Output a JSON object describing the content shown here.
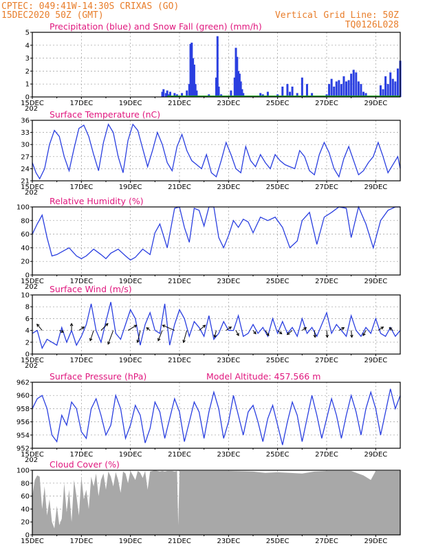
{
  "header": {
    "line1": "CPTEC:   049:41W-14:30S   CRIXAS (GO)",
    "line2": "15DEC2020 50Z (GMT)",
    "grid_note": "Vertical Grid Line: 50Z",
    "run_id": "TQ0126L028"
  },
  "colors": {
    "header": "#e87d2a",
    "title": "#e0177e",
    "series": "#2a3fe0",
    "snow": "#1fa01f",
    "cloud": "#a8a8a8"
  },
  "x_axis": {
    "range_days": [
      15,
      30
    ],
    "labels": [
      {
        "day": 15,
        "label": "15DEC"
      },
      {
        "day": 17,
        "label": "17DEC"
      },
      {
        "day": 19,
        "label": "19DEC"
      },
      {
        "day": 21,
        "label": "21DEC"
      },
      {
        "day": 23,
        "label": "23DEC"
      },
      {
        "day": 25,
        "label": "25DEC"
      },
      {
        "day": 27,
        "label": "27DEC"
      },
      {
        "day": 29,
        "label": "29DEC"
      }
    ],
    "year_fragment": "202"
  },
  "chart_data": [
    {
      "id": "precip",
      "type": "bar",
      "title": "Precipitation (blue) and Snow Fall (green) (mm/h)",
      "ylim": [
        0,
        5
      ],
      "yticks": [
        0,
        1,
        2,
        3,
        4,
        5
      ],
      "grid": true,
      "x_day": [
        15.0,
        15.5,
        16.0,
        16.5,
        17.0,
        17.5,
        18.0,
        18.5,
        19.0,
        19.5,
        20.0,
        20.3,
        20.35,
        20.45,
        20.5,
        20.55,
        20.62,
        20.7,
        20.8,
        20.9,
        21.0,
        21.1,
        21.3,
        21.4,
        21.45,
        21.5,
        21.55,
        21.6,
        21.65,
        21.7,
        21.8,
        22.0,
        22.2,
        22.4,
        22.5,
        22.55,
        22.6,
        22.7,
        22.9,
        23.0,
        23.1,
        23.25,
        23.3,
        23.35,
        23.4,
        23.45,
        23.5,
        23.55,
        23.6,
        23.7,
        23.8,
        24.0,
        24.1,
        24.3,
        24.4,
        24.5,
        24.6,
        24.8,
        25.0,
        25.2,
        25.4,
        25.5,
        25.6,
        25.8,
        26.0,
        26.2,
        26.4,
        26.6,
        26.8,
        27.0,
        27.1,
        27.2,
        27.3,
        27.4,
        27.5,
        27.6,
        27.7,
        27.8,
        27.9,
        28.0,
        28.1,
        28.2,
        28.3,
        28.4,
        28.5,
        28.6,
        28.8,
        29.0,
        29.2,
        29.3,
        29.4,
        29.5,
        29.6,
        29.7,
        29.8,
        29.9,
        30.0
      ],
      "values": [
        0,
        0,
        0,
        0,
        0,
        0,
        0,
        0,
        0,
        0,
        0,
        0.4,
        0.6,
        0.3,
        0.5,
        0.2,
        0.4,
        0.1,
        0.3,
        0.2,
        0.1,
        0.3,
        0.5,
        1.0,
        4.1,
        4.2,
        3.0,
        2.5,
        1.0,
        0.5,
        0.1,
        0.1,
        0.2,
        0.1,
        1.5,
        4.7,
        0.8,
        0.2,
        0,
        0.1,
        0.5,
        1.5,
        3.8,
        3.1,
        2.0,
        1.8,
        1.2,
        0.6,
        0.3,
        0.1,
        0,
        0,
        0.1,
        0.3,
        0.2,
        0.1,
        0.4,
        0.1,
        0.2,
        0.8,
        1.0,
        0.4,
        0.8,
        0.3,
        1.5,
        1.0,
        0.3,
        0.1,
        0.1,
        0.2,
        1.0,
        1.4,
        0.8,
        1.2,
        1.3,
        1.0,
        1.6,
        1.2,
        1.3,
        1.8,
        2.1,
        1.9,
        1.2,
        1.0,
        0.4,
        0.3,
        0.1,
        0.1,
        0.9,
        0.6,
        1.6,
        1.0,
        1.9,
        1.4,
        1.2,
        2.2,
        2.8
      ],
      "snow_values": [
        0
      ]
    },
    {
      "id": "temp",
      "type": "line",
      "title": "Surface Temperature (nC)",
      "ylim": [
        21,
        36
      ],
      "yticks": [
        21,
        24,
        27,
        30,
        33,
        36
      ],
      "grid": true,
      "x_day": [
        15.0,
        15.15,
        15.3,
        15.5,
        15.7,
        15.9,
        16.1,
        16.3,
        16.5,
        16.7,
        16.9,
        17.1,
        17.3,
        17.5,
        17.7,
        17.9,
        18.1,
        18.3,
        18.5,
        18.7,
        18.9,
        19.1,
        19.3,
        19.5,
        19.7,
        19.9,
        20.1,
        20.3,
        20.5,
        20.7,
        20.9,
        21.1,
        21.3,
        21.5,
        21.7,
        21.9,
        22.1,
        22.3,
        22.5,
        22.7,
        22.9,
        23.1,
        23.3,
        23.5,
        23.7,
        23.9,
        24.1,
        24.3,
        24.5,
        24.7,
        24.9,
        25.1,
        25.3,
        25.5,
        25.7,
        25.9,
        26.1,
        26.3,
        26.5,
        26.7,
        26.9,
        27.1,
        27.3,
        27.5,
        27.7,
        27.9,
        28.1,
        28.3,
        28.5,
        28.7,
        28.9,
        29.1,
        29.3,
        29.5,
        29.7,
        29.9,
        30.0
      ],
      "values": [
        25.5,
        23.0,
        21.5,
        24.0,
        30.0,
        33.5,
        32.0,
        27.0,
        23.5,
        29.0,
        34.0,
        34.8,
        32.0,
        27.5,
        23.5,
        30.5,
        35.0,
        33.0,
        27.0,
        23.0,
        31.0,
        35.0,
        33.5,
        29.0,
        24.5,
        28.5,
        33.0,
        30.0,
        25.5,
        23.5,
        29.5,
        32.5,
        28.5,
        26.0,
        25.0,
        24.0,
        27.5,
        23.0,
        22.0,
        26.0,
        30.5,
        27.5,
        24.0,
        23.0,
        29.5,
        26.0,
        24.5,
        27.5,
        25.5,
        24.0,
        27.5,
        26.0,
        25.0,
        24.5,
        24.0,
        28.5,
        27.0,
        23.5,
        22.5,
        27.5,
        30.5,
        28.0,
        24.0,
        22.0,
        26.5,
        29.5,
        26.0,
        22.5,
        23.5,
        25.5,
        27.0,
        30.5,
        27.0,
        23.0,
        25.0,
        27.0,
        24.0
      ]
    },
    {
      "id": "rh",
      "type": "line",
      "title": "Relative Humidity (%)",
      "ylim": [
        0,
        100
      ],
      "yticks": [
        0,
        20,
        40,
        60,
        80,
        100
      ],
      "grid": true,
      "x_day": [
        15.0,
        15.2,
        15.4,
        15.6,
        15.8,
        16.0,
        16.2,
        16.5,
        16.8,
        17.0,
        17.2,
        17.5,
        17.8,
        18.0,
        18.2,
        18.5,
        18.8,
        19.0,
        19.2,
        19.5,
        19.8,
        20.0,
        20.2,
        20.5,
        20.8,
        21.0,
        21.2,
        21.4,
        21.6,
        21.8,
        22.0,
        22.2,
        22.4,
        22.6,
        22.8,
        23.0,
        23.2,
        23.4,
        23.6,
        23.8,
        24.0,
        24.3,
        24.6,
        24.9,
        25.2,
        25.5,
        25.8,
        26.0,
        26.3,
        26.6,
        26.9,
        27.2,
        27.5,
        27.8,
        28.0,
        28.3,
        28.6,
        28.9,
        29.2,
        29.5,
        29.8,
        30.0
      ],
      "values": [
        60,
        75,
        88,
        55,
        28,
        30,
        34,
        40,
        28,
        24,
        28,
        38,
        30,
        24,
        32,
        38,
        28,
        22,
        26,
        38,
        30,
        62,
        75,
        40,
        98,
        100,
        70,
        48,
        98,
        95,
        72,
        100,
        100,
        55,
        40,
        58,
        80,
        70,
        82,
        78,
        62,
        85,
        80,
        85,
        70,
        40,
        50,
        80,
        92,
        45,
        85,
        92,
        100,
        98,
        55,
        100,
        75,
        40,
        80,
        95,
        100,
        100
      ]
    },
    {
      "id": "wind",
      "type": "line",
      "title": "Surface Wind (m/s)",
      "ylim": [
        0,
        10
      ],
      "yticks": [
        0,
        2,
        4,
        6,
        8,
        10
      ],
      "grid": true,
      "x_day": [
        15.0,
        15.2,
        15.4,
        15.6,
        15.8,
        16.0,
        16.2,
        16.4,
        16.6,
        16.8,
        17.0,
        17.2,
        17.4,
        17.6,
        17.8,
        18.0,
        18.2,
        18.4,
        18.6,
        18.8,
        19.0,
        19.2,
        19.4,
        19.6,
        19.8,
        20.0,
        20.2,
        20.4,
        20.6,
        20.8,
        21.0,
        21.2,
        21.4,
        21.6,
        21.8,
        22.0,
        22.2,
        22.4,
        22.6,
        22.8,
        23.0,
        23.2,
        23.4,
        23.6,
        23.8,
        24.0,
        24.2,
        24.4,
        24.6,
        24.8,
        25.0,
        25.2,
        25.4,
        25.6,
        25.8,
        26.0,
        26.2,
        26.4,
        26.6,
        26.8,
        27.0,
        27.2,
        27.4,
        27.6,
        27.8,
        28.0,
        28.2,
        28.4,
        28.6,
        28.8,
        29.0,
        29.2,
        29.4,
        29.6,
        29.8,
        30.0
      ],
      "values": [
        3.5,
        4.0,
        1.0,
        2.5,
        2.0,
        1.5,
        4.5,
        2.0,
        4.0,
        1.5,
        3.0,
        5.0,
        8.5,
        4.0,
        2.0,
        5.5,
        8.8,
        3.5,
        2.5,
        5.0,
        7.5,
        6.0,
        1.5,
        5.0,
        7.0,
        4.0,
        3.5,
        8.5,
        1.5,
        5.0,
        7.5,
        6.0,
        3.0,
        5.5,
        4.5,
        3.0,
        6.5,
        2.5,
        3.5,
        5.5,
        4.0,
        4.0,
        6.5,
        3.0,
        3.5,
        5.0,
        3.5,
        4.5,
        3.0,
        6.0,
        3.5,
        5.5,
        3.5,
        4.5,
        3.0,
        6.0,
        3.5,
        4.5,
        3.0,
        5.0,
        7.0,
        3.5,
        5.0,
        4.0,
        3.0,
        6.5,
        4.0,
        3.0,
        4.5,
        3.5,
        6.0,
        3.5,
        3.0,
        4.5,
        3.0,
        4.0
      ],
      "vectors": [
        {
          "day": 15.4,
          "u": -1.5,
          "v": 1.8
        },
        {
          "day": 16.1,
          "u": 1.2,
          "v": -0.5
        },
        {
          "day": 16.6,
          "u": 0,
          "v": 2.0
        },
        {
          "day": 16.9,
          "u": 1.5,
          "v": 1.0
        },
        {
          "day": 17.5,
          "u": -1.0,
          "v": -3.0
        },
        {
          "day": 17.8,
          "u": 2.0,
          "v": 2.0
        },
        {
          "day": 18.3,
          "u": -1.5,
          "v": -4.0
        },
        {
          "day": 18.9,
          "u": 2.5,
          "v": 1.5
        },
        {
          "day": 19.4,
          "u": -0.8,
          "v": -3.5
        },
        {
          "day": 19.8,
          "u": -1.0,
          "v": 0.8
        },
        {
          "day": 20.3,
          "u": -1.2,
          "v": -3.0
        },
        {
          "day": 20.8,
          "u": -3.5,
          "v": 1.5
        },
        {
          "day": 21.3,
          "u": -1.0,
          "v": -3.5
        },
        {
          "day": 21.8,
          "u": 1.8,
          "v": 1.5
        },
        {
          "day": 22.5,
          "u": -0.5,
          "v": -2.0
        },
        {
          "day": 22.9,
          "u": 1.5,
          "v": 1.0
        },
        {
          "day": 23.3,
          "u": 0.8,
          "v": -1.5
        },
        {
          "day": 24.0,
          "u": 0.8,
          "v": -1.0
        },
        {
          "day": 24.5,
          "u": 1.0,
          "v": -1.5
        },
        {
          "day": 25.0,
          "u": 1.2,
          "v": -1.0
        },
        {
          "day": 25.6,
          "u": -1.5,
          "v": -1.2
        },
        {
          "day": 26.0,
          "u": 1.2,
          "v": 0.8
        },
        {
          "day": 26.5,
          "u": 0.2,
          "v": -2.0
        },
        {
          "day": 27.0,
          "u": 0.2,
          "v": -2.0
        },
        {
          "day": 27.5,
          "u": 1.5,
          "v": 0.8
        },
        {
          "day": 28.0,
          "u": 0.2,
          "v": -2.0
        },
        {
          "day": 28.6,
          "u": -0.8,
          "v": -1.5
        },
        {
          "day": 29.1,
          "u": 1.5,
          "v": 1.0
        },
        {
          "day": 29.7,
          "u": -1.0,
          "v": 0.8
        }
      ]
    },
    {
      "id": "pres",
      "type": "line",
      "title": "Surface Pressure (hPa)",
      "annotation": "Model Altitude: 457.566  m",
      "ylim": [
        952,
        962
      ],
      "yticks": [
        952,
        954,
        956,
        958,
        960,
        962
      ],
      "grid": true,
      "x_day": [
        15.0,
        15.2,
        15.4,
        15.6,
        15.8,
        16.0,
        16.2,
        16.4,
        16.6,
        16.8,
        17.0,
        17.2,
        17.4,
        17.6,
        17.8,
        18.0,
        18.2,
        18.4,
        18.6,
        18.8,
        19.0,
        19.2,
        19.4,
        19.6,
        19.8,
        20.0,
        20.2,
        20.4,
        20.6,
        20.8,
        21.0,
        21.2,
        21.4,
        21.6,
        21.8,
        22.0,
        22.2,
        22.4,
        22.6,
        22.8,
        23.0,
        23.2,
        23.4,
        23.6,
        23.8,
        24.0,
        24.2,
        24.4,
        24.6,
        24.8,
        25.0,
        25.2,
        25.4,
        25.6,
        25.8,
        26.0,
        26.2,
        26.4,
        26.6,
        26.8,
        27.0,
        27.2,
        27.4,
        27.6,
        27.8,
        28.0,
        28.2,
        28.4,
        28.6,
        28.8,
        29.0,
        29.2,
        29.4,
        29.6,
        29.8,
        30.0
      ],
      "values": [
        958.0,
        959.5,
        960.0,
        958.0,
        954.0,
        953.0,
        957.0,
        955.5,
        959.0,
        958.0,
        954.5,
        953.5,
        958.0,
        959.5,
        957.0,
        954.0,
        955.5,
        960.0,
        958.0,
        953.5,
        955.5,
        958.5,
        957.0,
        952.8,
        955.0,
        959.0,
        957.5,
        953.5,
        956.5,
        959.5,
        957.5,
        953.0,
        956.0,
        959.0,
        957.5,
        953.5,
        957.5,
        960.5,
        958.0,
        953.5,
        956.0,
        960.0,
        957.0,
        954.0,
        957.5,
        958.5,
        956.0,
        953.0,
        956.5,
        958.5,
        955.5,
        952.5,
        956.0,
        959.0,
        957.0,
        953.0,
        956.5,
        960.0,
        957.0,
        953.5,
        956.5,
        959.5,
        957.0,
        953.5,
        957.0,
        960.0,
        957.5,
        954.0,
        958.0,
        960.5,
        958.0,
        954.0,
        957.5,
        961.0,
        958.0,
        960.0
      ]
    },
    {
      "id": "cloud",
      "type": "area",
      "title": "Cloud Cover (%)",
      "ylim": [
        0,
        100
      ],
      "yticks": [
        0,
        20,
        40,
        60,
        80,
        100
      ],
      "grid": true,
      "x_day": [
        15.0,
        15.1,
        15.2,
        15.3,
        15.4,
        15.5,
        15.6,
        15.7,
        15.8,
        15.9,
        16.0,
        16.1,
        16.2,
        16.3,
        16.4,
        16.5,
        16.6,
        16.7,
        16.8,
        16.9,
        17.0,
        17.1,
        17.2,
        17.3,
        17.4,
        17.5,
        17.6,
        17.7,
        17.8,
        17.9,
        18.0,
        18.1,
        18.2,
        18.3,
        18.4,
        18.5,
        18.6,
        18.7,
        18.8,
        18.9,
        19.0,
        19.1,
        19.2,
        19.3,
        19.4,
        19.5,
        19.6,
        19.7,
        19.8,
        19.9,
        20.0,
        20.1,
        20.2,
        20.3,
        20.4,
        20.5,
        20.6,
        20.7,
        20.8,
        20.9,
        20.95,
        21.0,
        22.0,
        23.0,
        24.0,
        24.5,
        25.0,
        26.0,
        26.5,
        27.0,
        28.0,
        28.5,
        28.8,
        29.0,
        30.0
      ],
      "values": [
        60,
        85,
        92,
        90,
        40,
        75,
        30,
        55,
        20,
        10,
        45,
        15,
        25,
        80,
        35,
        70,
        20,
        85,
        60,
        30,
        90,
        55,
        70,
        40,
        90,
        75,
        95,
        60,
        85,
        95,
        70,
        98,
        90,
        75,
        97,
        85,
        65,
        98,
        95,
        80,
        99,
        92,
        85,
        99,
        96,
        88,
        99,
        70,
        98,
        99,
        100,
        99,
        98,
        99,
        98,
        99,
        99,
        99,
        98,
        99,
        15,
        99,
        99,
        99,
        98,
        96,
        97,
        95,
        98,
        99,
        99,
        92,
        85,
        99,
        99
      ]
    }
  ]
}
